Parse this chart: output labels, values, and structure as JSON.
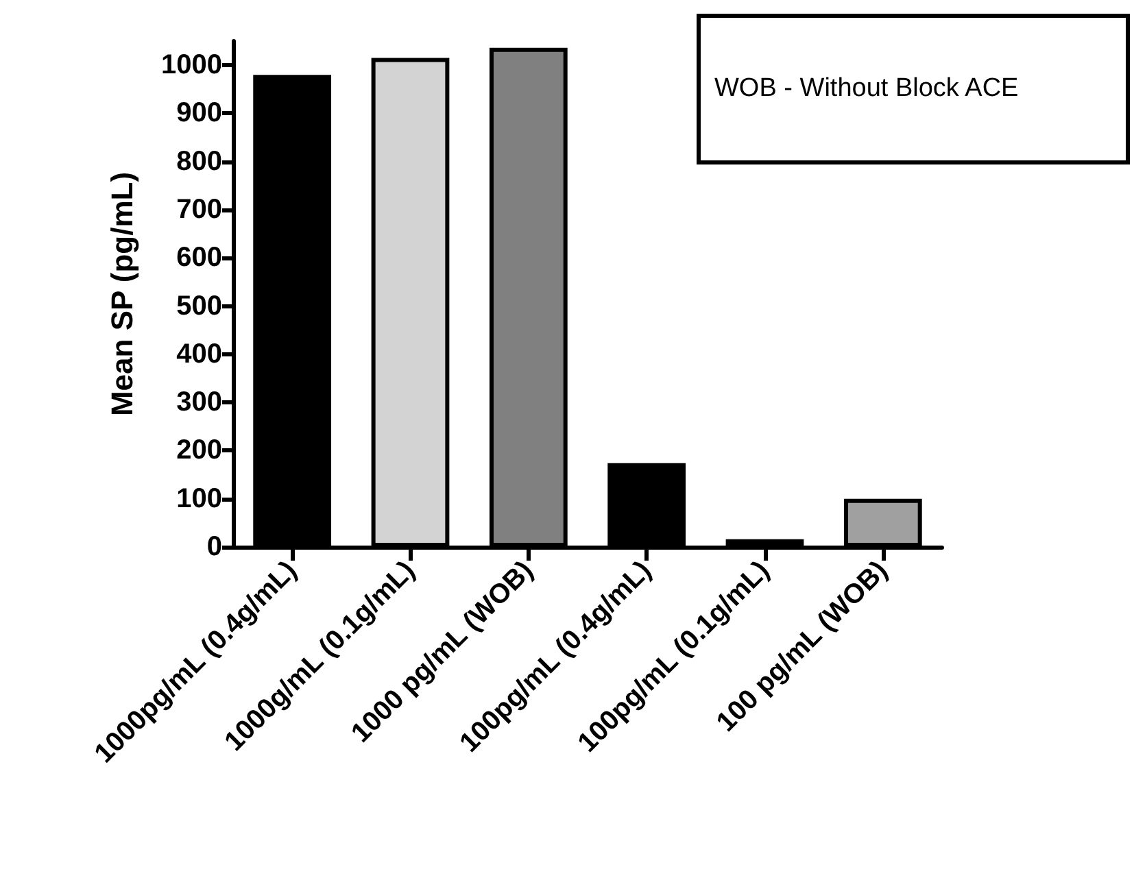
{
  "chart_data": {
    "type": "bar",
    "ylabel": "Mean SP (pg/mL)",
    "categories": [
      "1000pg/mL (0.4g/mL)",
      "1000g/mL (0.1g/mL)",
      "1000 pg/mL (WOB)",
      "100pg/mL (0.4g/mL)",
      "100pg/mL (0.1g/mL)",
      "100 pg/mL (WOB)"
    ],
    "values": [
      980,
      1015,
      1036,
      174,
      16,
      100
    ],
    "colors": [
      "#000000",
      "#d3d3d3",
      "#808080",
      "#000000",
      "#a0a0a0",
      "#a0a0a0"
    ],
    "ylim": [
      0,
      1050
    ],
    "yticks": [
      0,
      100,
      200,
      300,
      400,
      500,
      600,
      700,
      800,
      900,
      1000
    ],
    "grid": false,
    "annotations": [
      "WOB - Without Block ACE"
    ]
  }
}
